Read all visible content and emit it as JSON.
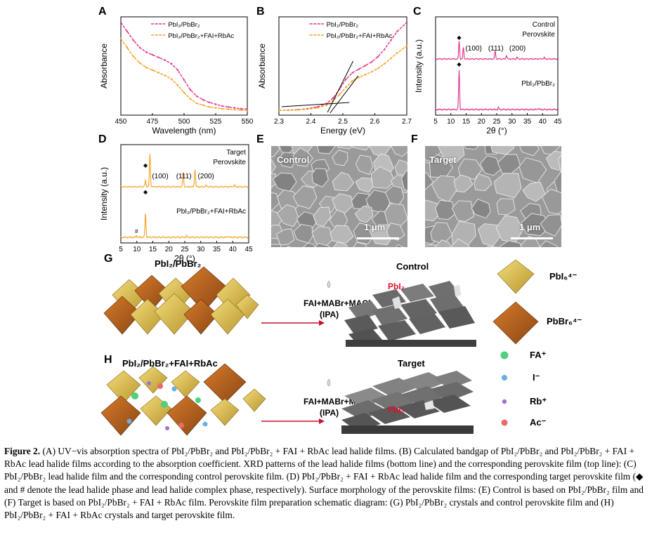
{
  "colors": {
    "pink": "#e0308a",
    "orange": "#f5a020",
    "gold": "#d8b84a",
    "brown": "#b8621e",
    "gray_block": "#5c5c5c",
    "fa_green": "#4fd07a",
    "iodide_blue": "#6aaee6",
    "rb_purple": "#9a74d0",
    "ac_red": "#e86a6a",
    "arrow_red": "#c8102e"
  },
  "panels": {
    "A": {
      "letter": "A"
    },
    "B": {
      "letter": "B"
    },
    "C": {
      "letter": "C"
    },
    "D": {
      "letter": "D"
    },
    "E": {
      "letter": "E",
      "label": "Control",
      "scale": "1 μm"
    },
    "F": {
      "letter": "F",
      "label": "Target",
      "scale": "1 μm"
    },
    "G": {
      "letter": "G",
      "left_title": "PbI₂/PbBr₂",
      "reagents": "FAI+MABr+MACl",
      "solvent": "(IPA)",
      "right_title": "Control",
      "pbi2_tag": "PbI₂"
    },
    "H": {
      "letter": "H",
      "left_title": "PbI₂/PbBr₂+FAI+RbAc",
      "reagents": "FAI+MABr+MACl",
      "solvent": "(IPA)",
      "right_title": "Target",
      "pbi2_tag": "PbI₂"
    }
  },
  "legend_species": [
    {
      "name": "PbI₆⁴⁻",
      "icon": "gold-octahedron-icon"
    },
    {
      "name": "PbBr₆⁴⁻",
      "icon": "brown-octahedron-icon"
    },
    {
      "name": "FA⁺",
      "icon": "green-sphere-icon"
    },
    {
      "name": "I⁻",
      "icon": "blue-sphere-icon"
    },
    {
      "name": "Rb⁺",
      "icon": "purple-sphere-icon"
    },
    {
      "name": "Ac⁻",
      "icon": "red-sphere-icon"
    }
  ],
  "chart_data": [
    {
      "id": "A",
      "type": "line",
      "xlabel": "Wavelength (nm)",
      "ylabel": "Absorbance",
      "xlim": [
        450,
        550
      ],
      "xticks": [
        450,
        475,
        500,
        525,
        550
      ],
      "series": [
        {
          "name": "PbI₂/PbBr₂",
          "color": "#e0308a",
          "x": [
            450,
            455,
            460,
            465,
            470,
            475,
            480,
            485,
            490,
            495,
            500,
            505,
            510,
            515,
            520,
            525,
            530,
            535,
            540,
            545,
            550
          ],
          "y": [
            1.0,
            0.9,
            0.8,
            0.72,
            0.67,
            0.64,
            0.61,
            0.58,
            0.54,
            0.47,
            0.36,
            0.25,
            0.18,
            0.14,
            0.11,
            0.09,
            0.07,
            0.06,
            0.05,
            0.04,
            0.035
          ]
        },
        {
          "name": "PbI₂/PbBr₂+FAI+RbAc",
          "color": "#f5a020",
          "x": [
            450,
            455,
            460,
            465,
            470,
            475,
            480,
            485,
            490,
            495,
            500,
            505,
            510,
            515,
            520,
            525,
            530,
            535,
            540,
            545,
            550
          ],
          "y": [
            0.82,
            0.72,
            0.62,
            0.55,
            0.5,
            0.47,
            0.44,
            0.41,
            0.37,
            0.3,
            0.22,
            0.15,
            0.1,
            0.08,
            0.06,
            0.05,
            0.04,
            0.035,
            0.03,
            0.025,
            0.02
          ]
        }
      ]
    },
    {
      "id": "B",
      "type": "line",
      "xlabel": "Energy (eV)",
      "ylabel": "Absorbance",
      "xlim": [
        2.3,
        2.7
      ],
      "xticks": [
        2.3,
        2.4,
        2.5,
        2.6,
        2.7
      ],
      "series": [
        {
          "name": "PbI₂/PbBr₂",
          "color": "#e0308a",
          "x": [
            2.3,
            2.33,
            2.36,
            2.39,
            2.42,
            2.45,
            2.47,
            2.49,
            2.51,
            2.53,
            2.55,
            2.57,
            2.59,
            2.61,
            2.63,
            2.65,
            2.67,
            2.7
          ],
          "y": [
            0.02,
            0.025,
            0.03,
            0.04,
            0.06,
            0.1,
            0.16,
            0.26,
            0.37,
            0.44,
            0.48,
            0.52,
            0.56,
            0.62,
            0.7,
            0.8,
            0.9,
            1.0
          ]
        },
        {
          "name": "PbI₂/PbBr₂+FAI+RbAc",
          "color": "#f5a020",
          "x": [
            2.3,
            2.33,
            2.36,
            2.39,
            2.42,
            2.45,
            2.47,
            2.49,
            2.51,
            2.53,
            2.55,
            2.57,
            2.59,
            2.61,
            2.63,
            2.65,
            2.67,
            2.7
          ],
          "y": [
            0.02,
            0.022,
            0.027,
            0.035,
            0.05,
            0.08,
            0.13,
            0.2,
            0.28,
            0.35,
            0.39,
            0.42,
            0.45,
            0.49,
            0.54,
            0.6,
            0.66,
            0.74
          ]
        }
      ]
    },
    {
      "id": "C",
      "type": "line",
      "xlabel": "2θ (°)",
      "ylabel": "Intensity (a.u.)",
      "xlim": [
        5,
        45
      ],
      "xticks": [
        5,
        10,
        15,
        20,
        25,
        30,
        35,
        40,
        45
      ],
      "labels_top": {
        "title": "Control",
        "title2": "Perovskite",
        "peaks": [
          "(100)",
          "(111)",
          "(200)"
        ]
      },
      "label_bottom": "PbI₂/PbBr₂",
      "series": [
        {
          "name": "Control Perovskite",
          "color": "#e0308a",
          "peaks": [
            [
              12.7,
              0.55
            ],
            [
              14.1,
              0.35
            ],
            [
              24.5,
              0.25
            ],
            [
              28.2,
              0.12
            ],
            [
              31.7,
              0.05
            ],
            [
              40.5,
              0.05
            ]
          ]
        },
        {
          "name": "PbI₂/PbBr₂",
          "color": "#e0308a",
          "peaks": [
            [
              12.7,
              1.0
            ],
            [
              25.6,
              0.05
            ],
            [
              38.6,
              0.04
            ]
          ]
        }
      ]
    },
    {
      "id": "D",
      "type": "line",
      "xlabel": "2θ (°)",
      "ylabel": "Intensity (a.u.)",
      "xlim": [
        5,
        45
      ],
      "xticks": [
        5,
        10,
        15,
        20,
        25,
        30,
        35,
        40,
        45
      ],
      "labels_top": {
        "title": "Target",
        "title2": "Perovskite",
        "peaks": [
          "(100)",
          "(111)",
          "(200)"
        ]
      },
      "label_bottom": "PbI₂/PbBr₂+FAI+RbAc",
      "markers": {
        "diamond": "◆",
        "hash": "#"
      },
      "series": [
        {
          "name": "Target Perovskite",
          "color": "#f5a020",
          "peaks": [
            [
              12.7,
              0.2
            ],
            [
              14.1,
              1.0
            ],
            [
              24.5,
              0.45
            ],
            [
              28.2,
              0.55
            ],
            [
              31.7,
              0.05
            ],
            [
              40.5,
              0.05
            ]
          ]
        },
        {
          "name": "PbI₂/PbBr₂+FAI+RbAc",
          "color": "#f5a020",
          "peaks": [
            [
              9.9,
              0.04
            ],
            [
              12.7,
              0.6
            ],
            [
              25.6,
              0.04
            ],
            [
              38.6,
              0.03
            ]
          ]
        }
      ]
    }
  ],
  "caption": {
    "figure_label": "Figure 2.",
    "text": "(A) UV−vis absorption spectra of PbI₂/PbBr₂ and PbI₂/PbBr₂ + FAI + RbAc lead halide films. (B) Calculated bandgap of PbI₂/PbBr₂ and PbI₂/PbBr₂ + FAI + RbAc lead halide films according to the absorption coefficient. XRD patterns of the lead halide films (bottom line) and the corresponding perovskite film (top line): (C) PbI₂/PbBr₂ lead halide film and the corresponding control perovskite film. (D) PbI₂/PbBr₂ + FAI + RbAc lead halide film and the corresponding target perovskite film (◆ and # denote the lead halide phase and lead halide complex phase, respectively). Surface morphology of the perovskite films: (E) Control is based on PbI₂/PbBr₂ film and (F) Target is based on PbI₂/PbBr₂ + FAI + RbAc film. Perovskite film preparation schematic diagram: (G) PbI₂/PbBr₂ crystals and control perovskite film and (H) PbI₂/PbBr₂ + FAI + RbAc crystals and target perovskite film."
  }
}
